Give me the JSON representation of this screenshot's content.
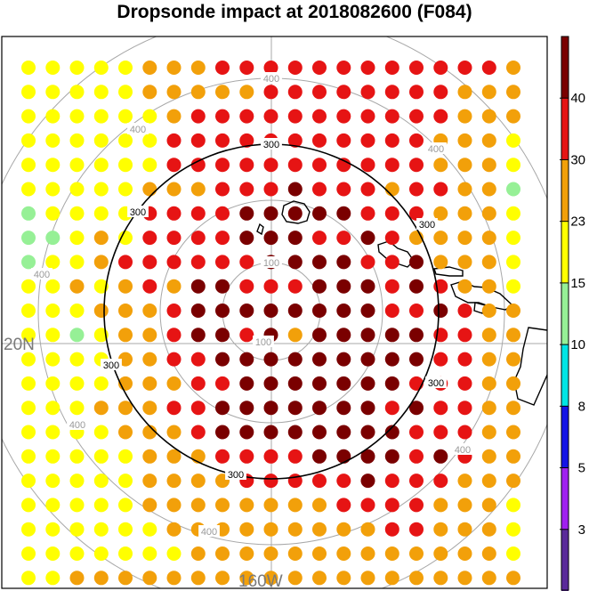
{
  "title": "Dropsonde impact at 2018082600 (F084)",
  "map": {
    "lat_label": "20N",
    "lon_label": "160W",
    "grey_ring_labels": [
      {
        "ring": "inner",
        "text": "100"
      },
      {
        "ring": "inner",
        "text": "100"
      },
      {
        "ring": "outer",
        "text": "400"
      },
      {
        "ring": "outer",
        "text": "400"
      },
      {
        "ring": "outer",
        "text": "400"
      },
      {
        "ring": "outer",
        "text": "400"
      },
      {
        "ring": "outer",
        "text": "400"
      },
      {
        "ring": "outer",
        "text": "400"
      },
      {
        "ring": "outer",
        "text": "400"
      }
    ],
    "black_ring_labels": [
      "300",
      "300",
      "300",
      "300",
      "300",
      "300"
    ]
  },
  "colorbar": {
    "labels": [
      "40",
      "30",
      "23",
      "15",
      "10",
      "8",
      "5",
      "3"
    ],
    "bands": [
      {
        "color": "#7a0000"
      },
      {
        "color": "#e61414"
      },
      {
        "color": "#f2a00a"
      },
      {
        "color": "#ffff00"
      },
      {
        "color": "#96f096"
      },
      {
        "color": "#00e5e5"
      },
      {
        "color": "#1414e6"
      },
      {
        "color": "#a020f0"
      },
      {
        "color": "#5a2a9a"
      }
    ]
  },
  "chart_data": {
    "type": "heatmap",
    "title": "Dropsonde impact at 2018082600 (F084)",
    "value_scale": "categorical color levels (0=lowest, 8=highest)",
    "level_colors": [
      "#5a2a9a",
      "#a020f0",
      "#1414e6",
      "#00e5e5",
      "#96f096",
      "#ffff00",
      "#f2a00a",
      "#e61414",
      "#7a0000"
    ],
    "grid": [
      [
        5,
        5,
        5,
        5,
        5,
        6,
        6,
        6,
        7,
        7,
        7,
        7,
        7,
        7,
        7,
        7,
        7,
        7,
        7,
        7,
        6
      ],
      [
        5,
        5,
        5,
        5,
        5,
        6,
        6,
        6,
        6,
        6,
        7,
        7,
        7,
        7,
        7,
        7,
        7,
        7,
        6,
        6,
        6
      ],
      [
        5,
        5,
        5,
        5,
        5,
        5,
        6,
        7,
        7,
        7,
        7,
        7,
        7,
        7,
        7,
        7,
        7,
        7,
        6,
        6,
        6
      ],
      [
        5,
        5,
        5,
        5,
        5,
        5,
        7,
        7,
        7,
        7,
        7,
        7,
        7,
        7,
        7,
        7,
        7,
        6,
        6,
        6,
        5
      ],
      [
        5,
        5,
        5,
        5,
        5,
        5,
        7,
        7,
        7,
        7,
        7,
        7,
        7,
        7,
        7,
        7,
        7,
        6,
        6,
        6,
        5
      ],
      [
        5,
        5,
        5,
        5,
        5,
        6,
        6,
        6,
        7,
        7,
        7,
        8,
        7,
        7,
        7,
        6,
        7,
        7,
        6,
        6,
        4
      ],
      [
        4,
        5,
        5,
        5,
        5,
        7,
        7,
        7,
        7,
        8,
        8,
        8,
        8,
        8,
        7,
        7,
        7,
        6,
        6,
        6,
        5
      ],
      [
        4,
        4,
        5,
        6,
        5,
        7,
        7,
        7,
        7,
        8,
        8,
        8,
        7,
        7,
        8,
        7,
        6,
        6,
        6,
        6,
        5
      ],
      [
        4,
        5,
        5,
        6,
        7,
        7,
        7,
        7,
        7,
        7,
        8,
        8,
        8,
        8,
        7,
        7,
        8,
        6,
        6,
        6,
        5
      ],
      [
        5,
        5,
        6,
        5,
        6,
        7,
        6,
        8,
        8,
        7,
        7,
        7,
        8,
        8,
        8,
        7,
        8,
        7,
        6,
        6,
        5
      ],
      [
        5,
        5,
        5,
        6,
        6,
        6,
        7,
        8,
        8,
        8,
        8,
        8,
        8,
        8,
        8,
        7,
        7,
        8,
        7,
        6,
        6
      ],
      [
        5,
        5,
        4,
        5,
        6,
        6,
        7,
        8,
        8,
        7,
        8,
        6,
        8,
        8,
        8,
        8,
        8,
        7,
        7,
        6,
        6
      ],
      [
        5,
        5,
        5,
        5,
        6,
        6,
        7,
        7,
        8,
        8,
        8,
        8,
        8,
        8,
        8,
        8,
        8,
        7,
        7,
        6,
        6
      ],
      [
        5,
        5,
        5,
        5,
        6,
        6,
        6,
        7,
        7,
        8,
        8,
        8,
        8,
        8,
        8,
        8,
        7,
        7,
        7,
        6,
        6
      ],
      [
        5,
        5,
        5,
        6,
        6,
        6,
        7,
        7,
        8,
        8,
        8,
        8,
        8,
        8,
        8,
        7,
        8,
        7,
        7,
        6,
        6
      ],
      [
        5,
        5,
        5,
        5,
        6,
        6,
        6,
        7,
        8,
        8,
        8,
        8,
        8,
        8,
        8,
        8,
        7,
        7,
        7,
        6,
        6
      ],
      [
        5,
        5,
        5,
        5,
        5,
        6,
        6,
        6,
        7,
        7,
        7,
        7,
        8,
        8,
        8,
        8,
        7,
        8,
        7,
        6,
        6
      ],
      [
        5,
        5,
        5,
        5,
        5,
        6,
        6,
        6,
        6,
        7,
        7,
        7,
        7,
        7,
        8,
        7,
        7,
        7,
        6,
        6,
        6
      ],
      [
        5,
        5,
        5,
        5,
        5,
        6,
        6,
        6,
        6,
        6,
        6,
        6,
        6,
        7,
        7,
        7,
        7,
        6,
        6,
        6,
        5
      ],
      [
        5,
        5,
        5,
        5,
        5,
        5,
        6,
        6,
        6,
        6,
        6,
        6,
        6,
        6,
        6,
        7,
        7,
        6,
        6,
        6,
        5
      ],
      [
        5,
        5,
        5,
        5,
        5,
        5,
        5,
        6,
        6,
        6,
        6,
        6,
        6,
        6,
        6,
        6,
        6,
        6,
        6,
        6,
        5
      ],
      [
        5,
        5,
        6,
        6,
        6,
        6,
        6,
        6,
        6,
        6,
        6,
        6,
        6,
        6,
        6,
        6,
        6,
        6,
        6,
        6,
        6
      ]
    ]
  }
}
